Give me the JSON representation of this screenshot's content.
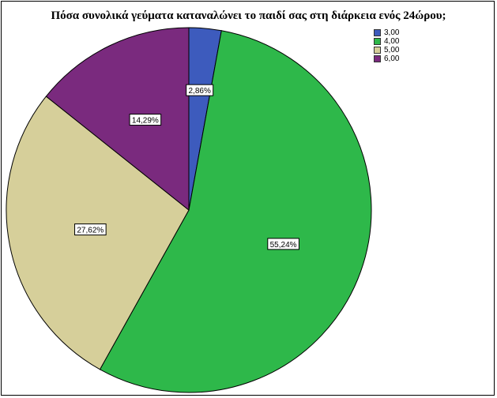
{
  "chart_data": {
    "type": "pie",
    "title": "Πόσα συνολικά γεύματα καταναλώνει το παιδί σας στη διάρκεια ενός 24ώρου;",
    "categories": [
      "3,00",
      "4,00",
      "5,00",
      "6,00"
    ],
    "values": [
      2.86,
      55.24,
      27.62,
      14.29
    ],
    "data_labels": [
      "2,86%",
      "55,24%",
      "27,62%",
      "14,29%"
    ],
    "colors": [
      "#3d5bbd",
      "#2eb84a",
      "#d6cf9a",
      "#7a2a7e"
    ],
    "start_angle": "top",
    "direction": "clockwise",
    "legend": "top-right"
  }
}
